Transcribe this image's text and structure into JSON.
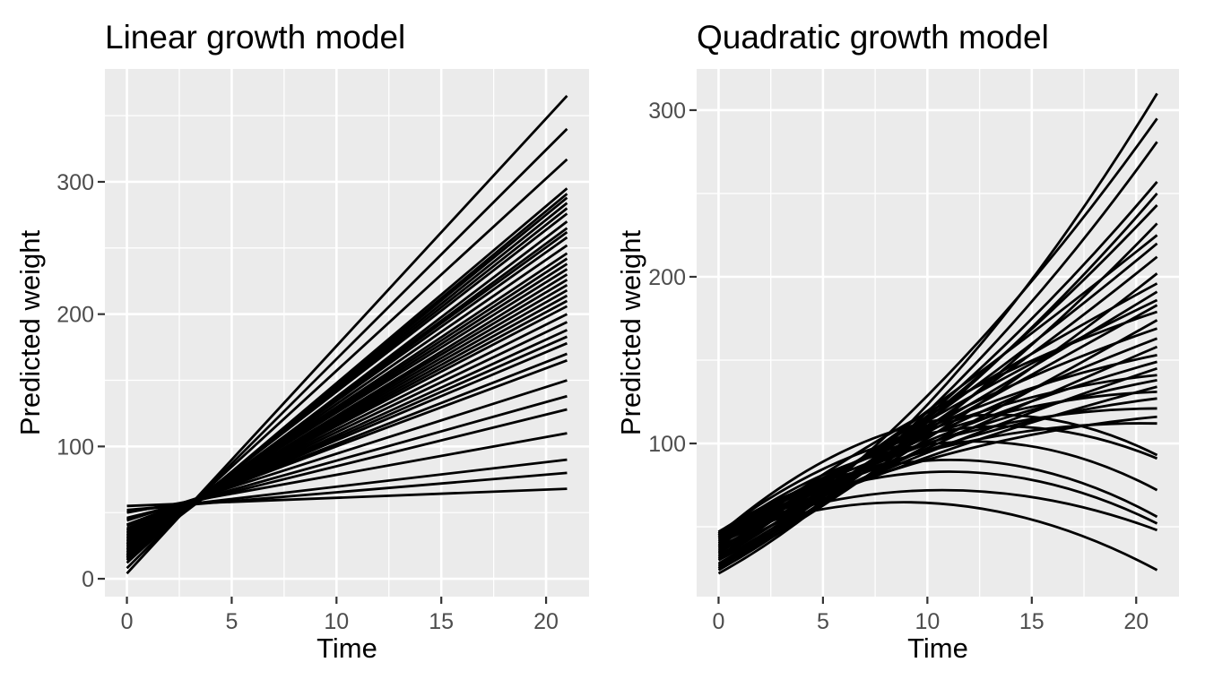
{
  "page": {
    "background": "#FFFFFF"
  },
  "styles": {
    "panel_background": "#EBEBEB",
    "grid_color": "#FFFFFF",
    "line_color": "#000000",
    "tick_mark_color": "#333333",
    "tick_label_color": "#4D4D4D",
    "title_color": "#000000"
  },
  "chart_data": [
    {
      "type": "line",
      "title": "Linear growth model",
      "xlabel": "Time",
      "ylabel": "Predicted weight",
      "model": "linear",
      "legend": "none",
      "grid": "on",
      "xlim": [
        -1.05,
        22.05
      ],
      "ylim": [
        -13.5,
        385.3
      ],
      "x_ticks": [
        0,
        5,
        10,
        15,
        20
      ],
      "y_ticks": [
        0,
        100,
        200,
        300
      ],
      "x_minor": [
        2.5,
        7.5,
        12.5,
        17.5
      ],
      "y_minor": [
        50,
        150,
        250,
        350
      ],
      "x": [
        0,
        21
      ],
      "series_note": "each entry is [predicted weight at Time=0, predicted weight at Time=21]",
      "series": [
        [
          4,
          365
        ],
        [
          8,
          340
        ],
        [
          12,
          317
        ],
        [
          14,
          295
        ],
        [
          15,
          291
        ],
        [
          16,
          288
        ],
        [
          17,
          284
        ],
        [
          18,
          280
        ],
        [
          19,
          276
        ],
        [
          17,
          270
        ],
        [
          20,
          265
        ],
        [
          21,
          262
        ],
        [
          22,
          258
        ],
        [
          23,
          252
        ],
        [
          24,
          246
        ],
        [
          25,
          242
        ],
        [
          26,
          238
        ],
        [
          27,
          234
        ],
        [
          26,
          230
        ],
        [
          28,
          226
        ],
        [
          29,
          222
        ],
        [
          30,
          218
        ],
        [
          31,
          214
        ],
        [
          32,
          210
        ],
        [
          33,
          206
        ],
        [
          34,
          200
        ],
        [
          35,
          194
        ],
        [
          36,
          188
        ],
        [
          37,
          183
        ],
        [
          38,
          178
        ],
        [
          40,
          170
        ],
        [
          41,
          165
        ],
        [
          44,
          150
        ],
        [
          45,
          138
        ],
        [
          46,
          128
        ],
        [
          50,
          110
        ],
        [
          51,
          90
        ],
        [
          52,
          80
        ],
        [
          55,
          68
        ]
      ]
    },
    {
      "type": "line",
      "title": "Quadratic growth model",
      "xlabel": "Time",
      "ylabel": "Predicted weight",
      "model": "quadratic",
      "legend": "none",
      "grid": "on",
      "xlim": [
        -1.05,
        22.05
      ],
      "ylim": [
        8.1,
        324.7
      ],
      "x_ticks": [
        0,
        5,
        10,
        15,
        20
      ],
      "y_ticks": [
        100,
        200,
        300
      ],
      "x_minor": [
        2.5,
        7.5,
        12.5,
        17.5
      ],
      "y_minor": [
        50,
        150,
        250
      ],
      "x": [
        0,
        10.5,
        21
      ],
      "series_note": "each entry is [weight at Time=0, weight at Time=10.5, weight at Time=21] on a quadratic curve",
      "series": [
        [
          22,
          130,
          310
        ],
        [
          25,
          135,
          295
        ],
        [
          24,
          125,
          281
        ],
        [
          28,
          122,
          257
        ],
        [
          27,
          118,
          250
        ],
        [
          30,
          120,
          243
        ],
        [
          26,
          112,
          232
        ],
        [
          32,
          124,
          225
        ],
        [
          31,
          118,
          220
        ],
        [
          33,
          114,
          212
        ],
        [
          30,
          107,
          202
        ],
        [
          34,
          120,
          196
        ],
        [
          35,
          112,
          191
        ],
        [
          36,
          117,
          186
        ],
        [
          37,
          110,
          183
        ],
        [
          38,
          122,
          179
        ],
        [
          35,
          102,
          174
        ],
        [
          39,
          114,
          169
        ],
        [
          40,
          107,
          163
        ],
        [
          38,
          100,
          158
        ],
        [
          41,
          112,
          153
        ],
        [
          42,
          104,
          149
        ],
        [
          40,
          97,
          145
        ],
        [
          43,
          110,
          141
        ],
        [
          44,
          102,
          138
        ],
        [
          42,
          94,
          134
        ],
        [
          45,
          107,
          131
        ],
        [
          43,
          98,
          127
        ],
        [
          46,
          102,
          121
        ],
        [
          44,
          92,
          116
        ],
        [
          47,
          97,
          112
        ],
        [
          45,
          114,
          93
        ],
        [
          46,
          107,
          91
        ],
        [
          44,
          100,
          72
        ],
        [
          47,
          90,
          56
        ],
        [
          45,
          83,
          52
        ],
        [
          46,
          72,
          48
        ],
        [
          43,
          64,
          24
        ]
      ]
    }
  ]
}
